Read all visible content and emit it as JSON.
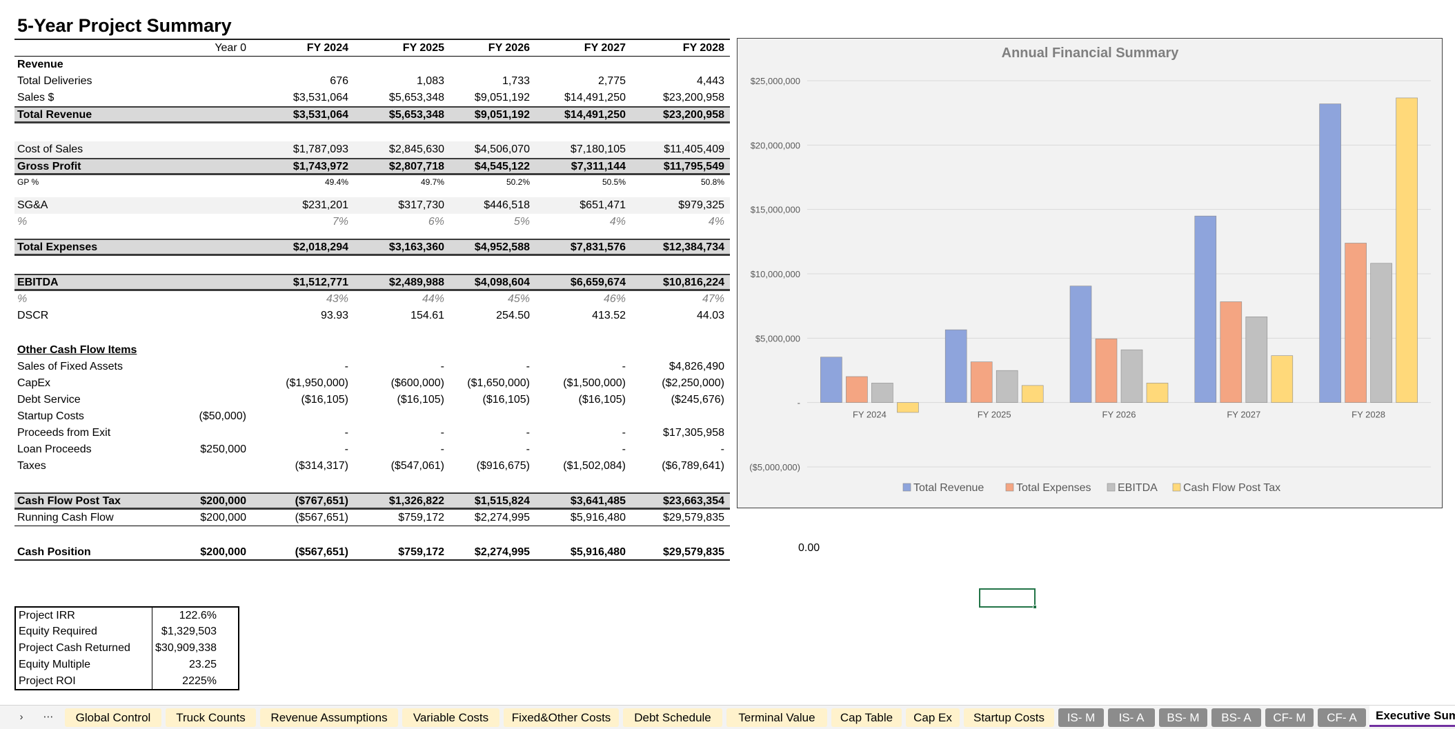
{
  "sheet": {
    "title": "5-Year Project Summary",
    "stray_value": "0.00"
  },
  "table": {
    "header": [
      "Year 0",
      "FY 2024",
      "FY 2025",
      "FY 2026",
      "FY 2027",
      "FY 2028"
    ],
    "revenue_label": "Revenue",
    "total_deliveries": {
      "label": "Total Deliveries",
      "values": [
        "",
        "676",
        "1,083",
        "1,733",
        "2,775",
        "4,443"
      ]
    },
    "sales": {
      "label": "Sales $",
      "values": [
        "",
        "$3,531,064",
        "$5,653,348",
        "$9,051,192",
        "$14,491,250",
        "$23,200,958"
      ]
    },
    "total_revenue": {
      "label": "Total Revenue",
      "values": [
        "",
        "$3,531,064",
        "$5,653,348",
        "$9,051,192",
        "$14,491,250",
        "$23,200,958"
      ]
    },
    "cost_of_sales": {
      "label": "Cost of Sales",
      "values": [
        "",
        "$1,787,093",
        "$2,845,630",
        "$4,506,070",
        "$7,180,105",
        "$11,405,409"
      ]
    },
    "gross_profit": {
      "label": "Gross Profit",
      "values": [
        "",
        "$1,743,972",
        "$2,807,718",
        "$4,545,122",
        "$7,311,144",
        "$11,795,549"
      ]
    },
    "gp_pct": {
      "label": "GP %",
      "values": [
        "",
        "49.4%",
        "49.7%",
        "50.2%",
        "50.5%",
        "50.8%"
      ]
    },
    "sga": {
      "label": "SG&A",
      "values": [
        "",
        "$231,201",
        "$317,730",
        "$446,518",
        "$651,471",
        "$979,325"
      ]
    },
    "sga_pct": {
      "label": "%",
      "values": [
        "",
        "7%",
        "6%",
        "5%",
        "4%",
        "4%"
      ]
    },
    "total_expenses": {
      "label": "Total Expenses",
      "values": [
        "",
        "$2,018,294",
        "$3,163,360",
        "$4,952,588",
        "$7,831,576",
        "$12,384,734"
      ]
    },
    "ebitda": {
      "label": "EBITDA",
      "values": [
        "",
        "$1,512,771",
        "$2,489,988",
        "$4,098,604",
        "$6,659,674",
        "$10,816,224"
      ]
    },
    "ebitda_pct": {
      "label": "%",
      "values": [
        "",
        "43%",
        "44%",
        "45%",
        "46%",
        "47%"
      ]
    },
    "dscr": {
      "label": "DSCR",
      "values": [
        "",
        "93.93",
        "154.61",
        "254.50",
        "413.52",
        "44.03"
      ]
    },
    "other_label": "Other Cash Flow Items",
    "sales_fixed_assets": {
      "label": "Sales of Fixed Assets",
      "values": [
        "",
        "-",
        "-",
        "-",
        "-",
        "$4,826,490"
      ]
    },
    "capex": {
      "label": "CapEx",
      "values": [
        "",
        "($1,950,000)",
        "($600,000)",
        "($1,650,000)",
        "($1,500,000)",
        "($2,250,000)"
      ]
    },
    "debt_service": {
      "label": "Debt Service",
      "values": [
        "",
        "($16,105)",
        "($16,105)",
        "($16,105)",
        "($16,105)",
        "($245,676)"
      ]
    },
    "startup_costs": {
      "label": "Startup Costs",
      "values": [
        "($50,000)",
        "",
        "",
        "",
        "",
        ""
      ]
    },
    "proceeds_exit": {
      "label": "Proceeds from Exit",
      "values": [
        "",
        "-",
        "-",
        "-",
        "-",
        "$17,305,958"
      ]
    },
    "loan_proceeds": {
      "label": "Loan Proceeds",
      "values": [
        "$250,000",
        "-",
        "-",
        "-",
        "-",
        "-"
      ]
    },
    "taxes": {
      "label": "Taxes",
      "values": [
        "",
        "($314,317)",
        "($547,061)",
        "($916,675)",
        "($1,502,084)",
        "($6,789,641)"
      ]
    },
    "cash_flow_post_tax": {
      "label": "Cash Flow Post Tax",
      "values": [
        "$200,000",
        "($767,651)",
        "$1,326,822",
        "$1,515,824",
        "$3,641,485",
        "$23,663,354"
      ]
    },
    "running_cash_flow": {
      "label": "Running Cash Flow",
      "values": [
        "$200,000",
        "($567,651)",
        "$759,172",
        "$2,274,995",
        "$5,916,480",
        "$29,579,835"
      ]
    },
    "cash_position": {
      "label": "Cash Position",
      "values": [
        "$200,000",
        "($567,651)",
        "$759,172",
        "$2,274,995",
        "$5,916,480",
        "$29,579,835"
      ]
    }
  },
  "metrics": [
    {
      "label": "Project IRR",
      "value": "122.6%"
    },
    {
      "label": "Equity Required",
      "value": "$1,329,503"
    },
    {
      "label": "Project Cash Returned",
      "value": "$30,909,338"
    },
    {
      "label": "Equity Multiple",
      "value": "23.25"
    },
    {
      "label": "Project ROI",
      "value": "2225%"
    }
  ],
  "chart_data": {
    "type": "bar",
    "title": "Annual Financial Summary",
    "categories": [
      "FY 2024",
      "FY 2025",
      "FY 2026",
      "FY 2027",
      "FY 2028"
    ],
    "series": [
      {
        "name": "Total Revenue",
        "values": [
          3531064,
          5653348,
          9051192,
          14491250,
          23200958
        ],
        "color": "#8ea4dc"
      },
      {
        "name": "Total Expenses",
        "values": [
          2018294,
          3163360,
          4952588,
          7831576,
          12384734
        ],
        "color": "#f4a582"
      },
      {
        "name": "EBITDA",
        "values": [
          1512771,
          2489988,
          4098604,
          6659674,
          10816224
        ],
        "color": "#c0c0c0"
      },
      {
        "name": "Cash Flow Post Tax",
        "values": [
          -767651,
          1326822,
          1515824,
          3641485,
          23663354
        ],
        "color": "#ffd97a"
      }
    ],
    "ylim": [
      -5000000,
      25000000
    ],
    "y_ticks": [
      -5000000,
      0,
      5000000,
      10000000,
      15000000,
      20000000,
      25000000
    ],
    "y_tick_labels": [
      "($5,000,000)",
      "-",
      "$5,000,000",
      "$10,000,000",
      "$15,000,000",
      "$20,000,000",
      "$25,000,000"
    ],
    "grid": true,
    "legend": "bottom"
  },
  "tabs": {
    "nav_next": "›",
    "nav_more": "⋯",
    "items": [
      {
        "label": "Global Control",
        "style": "yellow"
      },
      {
        "label": "Truck Counts",
        "style": "yellow"
      },
      {
        "label": "Revenue Assumptions",
        "style": "yellow"
      },
      {
        "label": "Variable Costs",
        "style": "yellow"
      },
      {
        "label": "Fixed&Other Costs",
        "style": "yellow"
      },
      {
        "label": "Debt Schedule",
        "style": "yellow"
      },
      {
        "label": "Terminal Value",
        "style": "yellow"
      },
      {
        "label": "Cap Table",
        "style": "yellow"
      },
      {
        "label": "Cap Ex",
        "style": "yellow"
      },
      {
        "label": "Startup Costs",
        "style": "yellow"
      },
      {
        "label": "IS- M",
        "style": "gray"
      },
      {
        "label": "IS- A",
        "style": "gray"
      },
      {
        "label": "BS- M",
        "style": "gray"
      },
      {
        "label": "BS- A",
        "style": "gray"
      },
      {
        "label": "CF- M",
        "style": "gray"
      },
      {
        "label": "CF- A",
        "style": "gray"
      },
      {
        "label": "Executive Sum",
        "style": "active"
      }
    ]
  }
}
